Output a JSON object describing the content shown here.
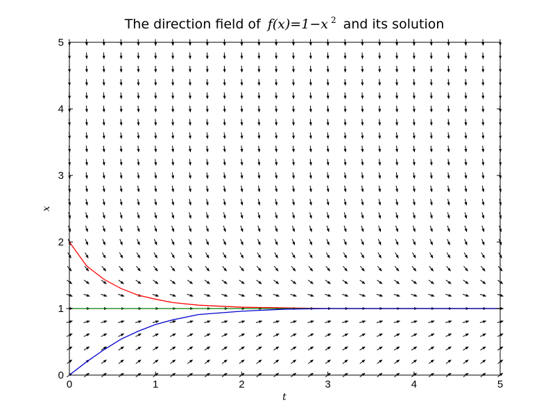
{
  "chart_data": {
    "type": "line",
    "title_prefix": "The direction field of",
    "title_math": "f(x)=1−x",
    "title_exponent": "2",
    "title_suffix": "and its solution",
    "xlabel": "t",
    "ylabel": "x",
    "xlim": [
      0,
      5
    ],
    "ylim": [
      0,
      5
    ],
    "xticks": [
      "0",
      "1",
      "2",
      "3",
      "4",
      "5"
    ],
    "yticks": [
      "0",
      "1",
      "2",
      "3",
      "4",
      "5"
    ],
    "grid": false,
    "direction_field": {
      "equation": "dx/dt = 1 - x^2",
      "t_samples": 26,
      "x_samples": 26,
      "color": "#000000"
    },
    "series": [
      {
        "color": "#ff0000",
        "x0": 2,
        "x": [
          0,
          0.2,
          0.4,
          0.6,
          0.8,
          1.0,
          1.2,
          1.5,
          2.0,
          2.5,
          3,
          4,
          5
        ],
        "y": [
          2.0,
          1.64,
          1.44,
          1.3,
          1.2,
          1.14,
          1.09,
          1.05,
          1.02,
          1.01,
          1.0,
          1.0,
          1.0
        ]
      },
      {
        "color": "#008000",
        "x0": 1,
        "x": [
          0,
          1,
          2,
          3,
          4,
          5
        ],
        "y": [
          1,
          1,
          1,
          1,
          1,
          1
        ]
      },
      {
        "color": "#0000cc",
        "x0": 0,
        "x": [
          0,
          0.2,
          0.4,
          0.6,
          0.8,
          1.0,
          1.2,
          1.5,
          2.0,
          2.5,
          3,
          4,
          5
        ],
        "y": [
          0,
          0.2,
          0.38,
          0.54,
          0.66,
          0.76,
          0.83,
          0.91,
          0.96,
          0.99,
          1.0,
          1.0,
          1.0
        ]
      }
    ]
  }
}
